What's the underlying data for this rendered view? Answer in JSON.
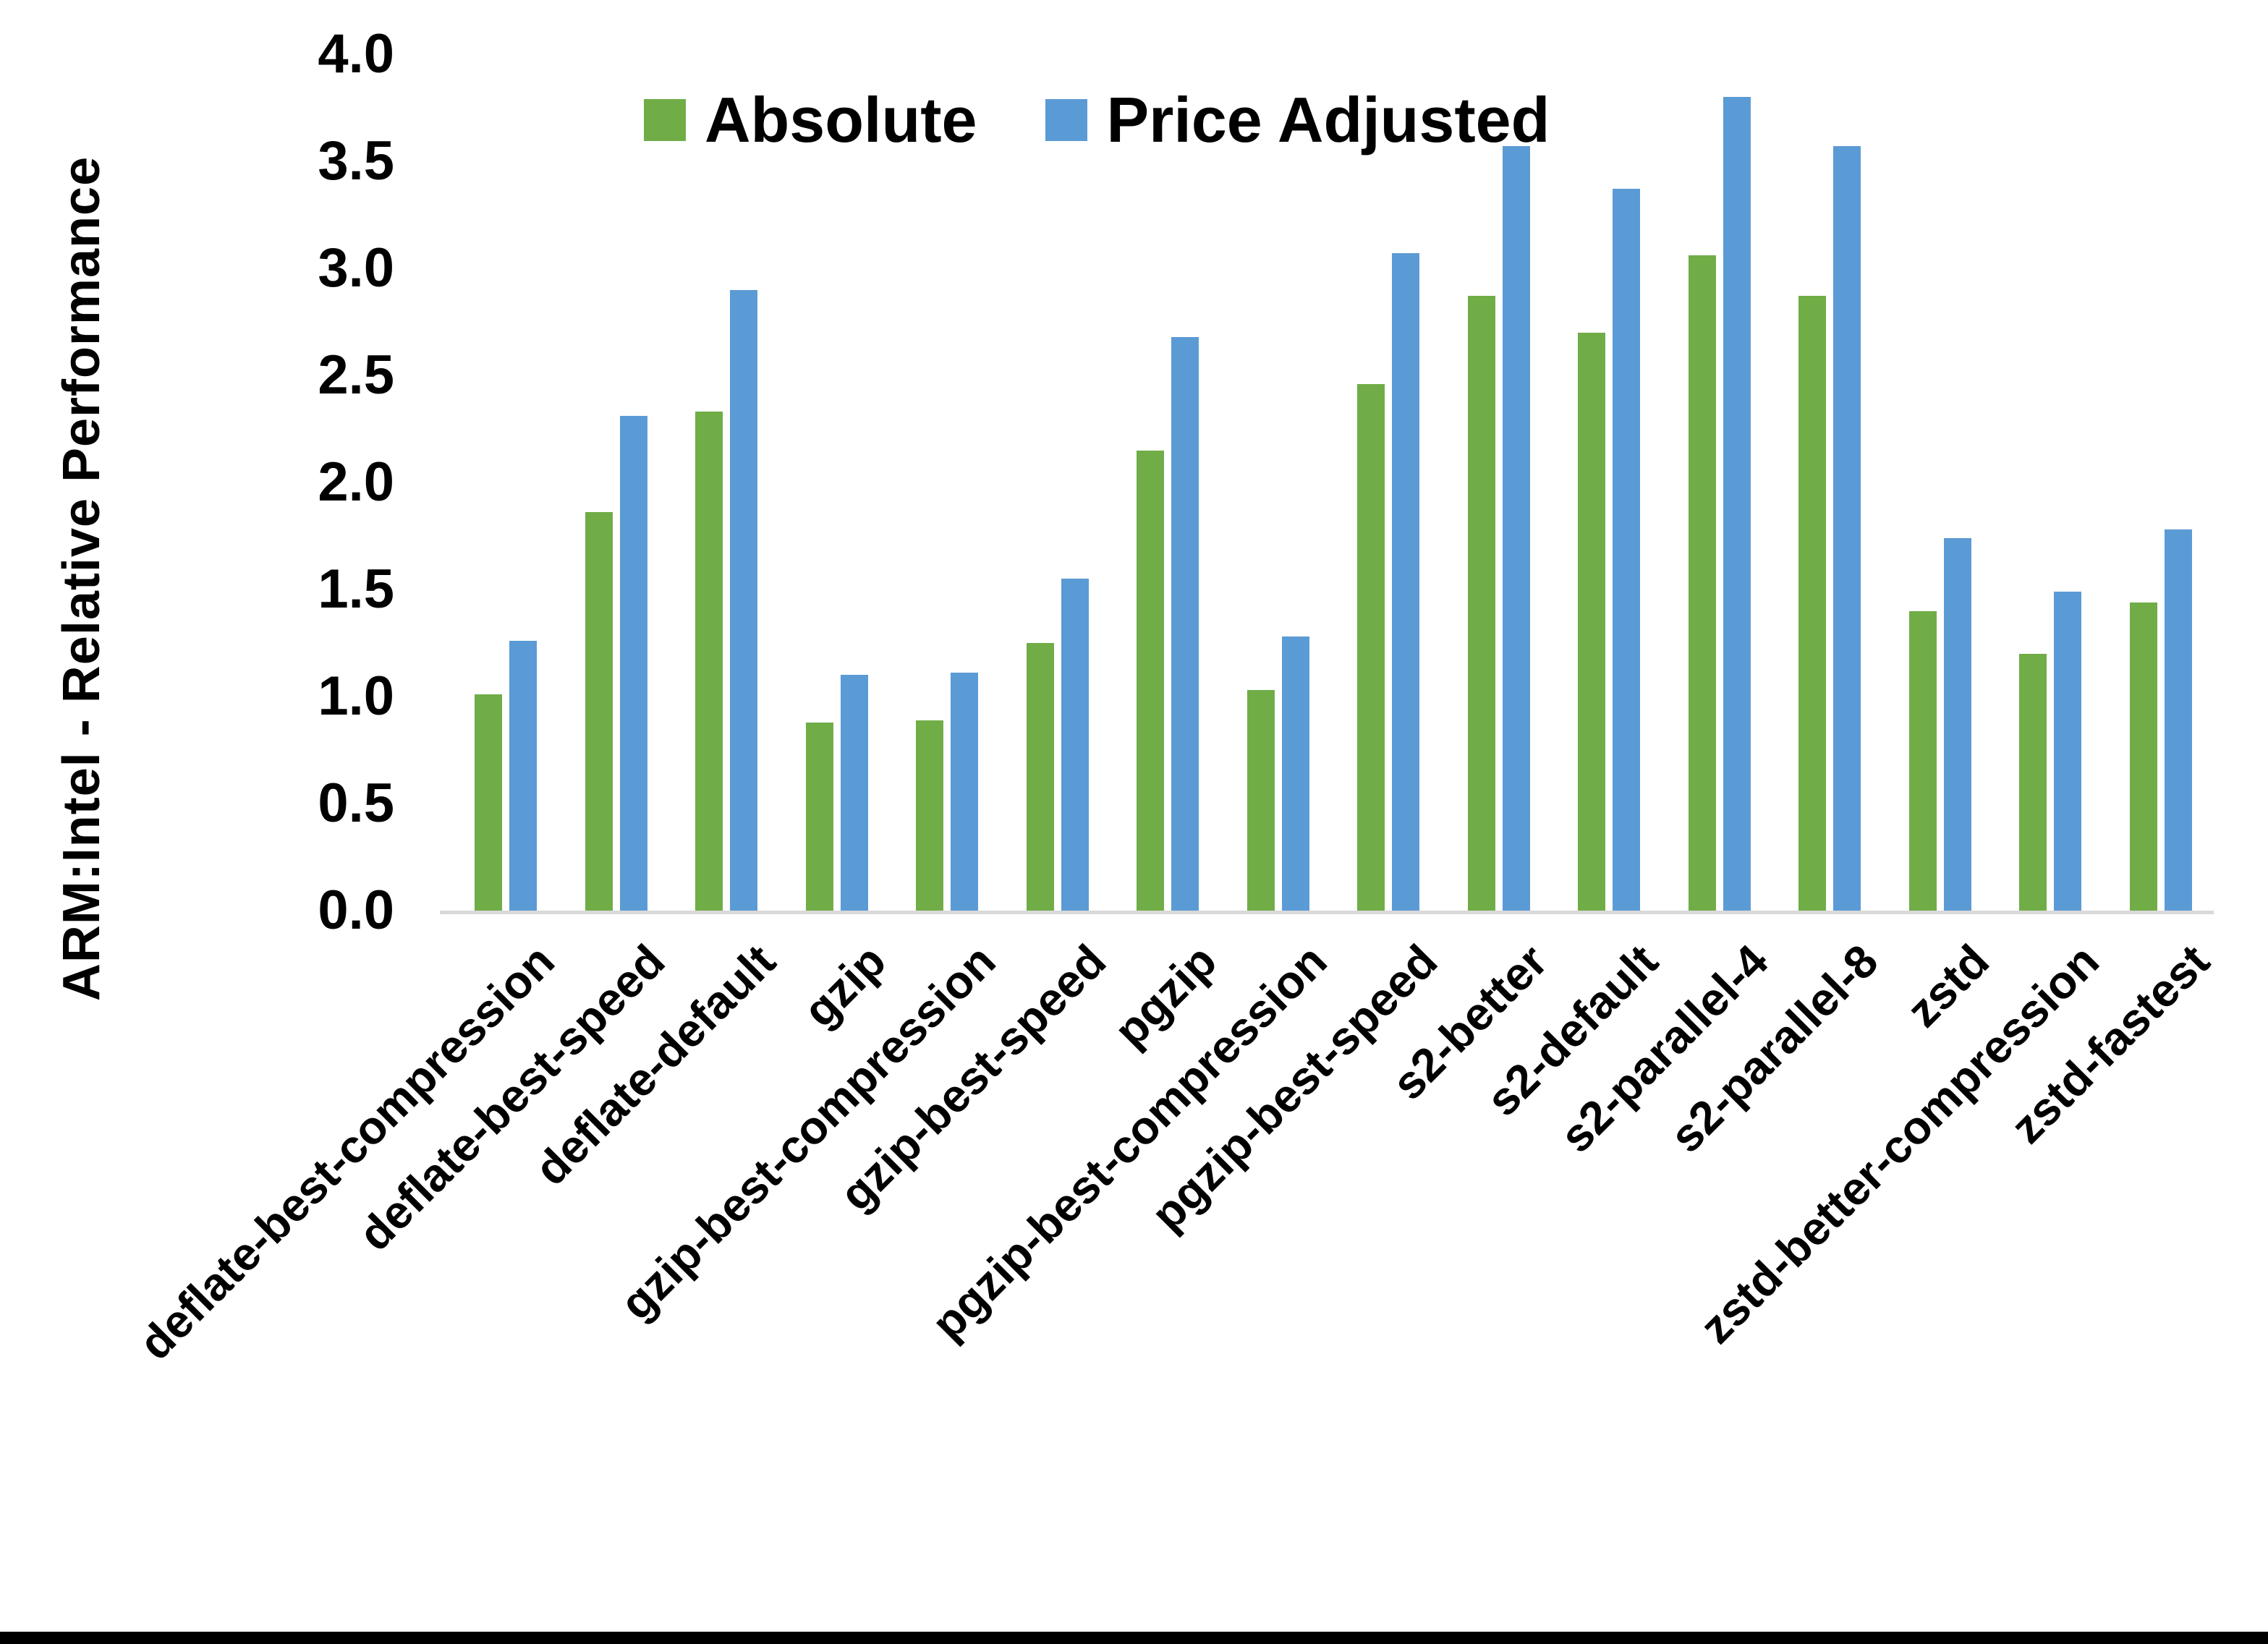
{
  "chart_data": {
    "type": "bar",
    "title": "",
    "xlabel": "",
    "ylabel": "ARM:Intel - Relative Performance",
    "ylim": [
      0.0,
      4.0
    ],
    "ytick_step": 0.5,
    "ytick_labels_top_to_bottom": [
      "4.0",
      "3.5",
      "3.0",
      "2.5",
      "2.0",
      "1.5",
      "1.0",
      "0.5",
      "0.0"
    ],
    "grid": false,
    "legend_position": "top-center",
    "background_color": "#ffffff",
    "axis_line_color": "#d9d9d9",
    "categories": [
      "deflate-best-compression",
      "deflate-best-speed",
      "deflate-default",
      "gzip",
      "gzip-best-compression",
      "gzip-best-speed",
      "pgzip",
      "pgzip-best-compression",
      "pgzip-best-speed",
      "s2-better",
      "s2-default",
      "s2-parallel-4",
      "s2-parallel-8",
      "zstd",
      "zstd-better-compression",
      "zstd-fastest"
    ],
    "series": [
      {
        "name": "Absolute",
        "color": "#70AD47",
        "values": [
          1.01,
          1.86,
          2.33,
          0.88,
          0.89,
          1.25,
          2.15,
          1.03,
          2.46,
          2.87,
          2.7,
          3.06,
          2.87,
          1.4,
          1.2,
          1.44
        ]
      },
      {
        "name": "Price Adjusted",
        "color": "#5B9BD5",
        "values": [
          1.26,
          2.31,
          2.9,
          1.1,
          1.11,
          1.55,
          2.68,
          1.28,
          3.07,
          3.57,
          3.37,
          3.8,
          3.57,
          1.74,
          1.49,
          1.78
        ]
      }
    ]
  }
}
